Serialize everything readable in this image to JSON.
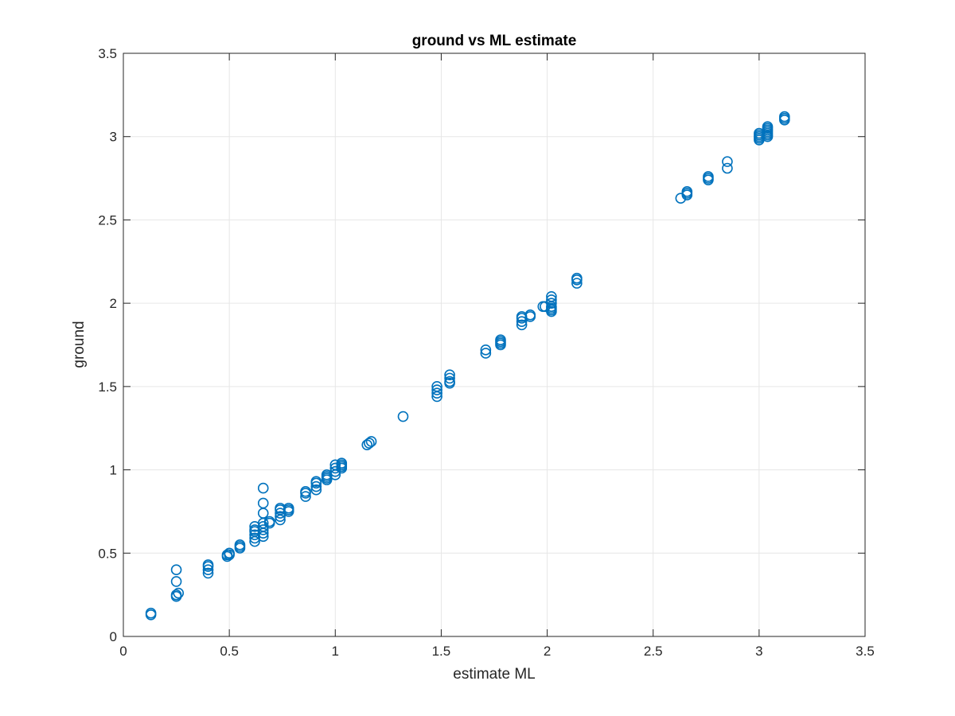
{
  "chart_data": {
    "type": "scatter",
    "title": "ground vs ML estimate",
    "xlabel": "estimate ML",
    "ylabel": "ground",
    "xlim": [
      0,
      3.5
    ],
    "ylim": [
      0,
      3.5
    ],
    "xticks": [
      "0",
      "0.5",
      "1",
      "1.5",
      "2",
      "2.5",
      "3",
      "3.5"
    ],
    "yticks": [
      "0",
      "0.5",
      "1",
      "1.5",
      "2",
      "2.5",
      "3",
      "3.5"
    ],
    "grid": true,
    "marker": "circle-open",
    "marker_color": "#0072BD",
    "points": [
      [
        0.13,
        0.13
      ],
      [
        0.13,
        0.14
      ],
      [
        0.25,
        0.24
      ],
      [
        0.25,
        0.25
      ],
      [
        0.26,
        0.26
      ],
      [
        0.25,
        0.33
      ],
      [
        0.25,
        0.4
      ],
      [
        0.4,
        0.38
      ],
      [
        0.4,
        0.4
      ],
      [
        0.4,
        0.42
      ],
      [
        0.4,
        0.43
      ],
      [
        0.49,
        0.48
      ],
      [
        0.5,
        0.49
      ],
      [
        0.5,
        0.5
      ],
      [
        0.49,
        0.49
      ],
      [
        0.55,
        0.53
      ],
      [
        0.55,
        0.54
      ],
      [
        0.55,
        0.55
      ],
      [
        0.62,
        0.57
      ],
      [
        0.62,
        0.59
      ],
      [
        0.62,
        0.61
      ],
      [
        0.62,
        0.63
      ],
      [
        0.62,
        0.64
      ],
      [
        0.62,
        0.66
      ],
      [
        0.66,
        0.6
      ],
      [
        0.66,
        0.62
      ],
      [
        0.66,
        0.64
      ],
      [
        0.66,
        0.66
      ],
      [
        0.66,
        0.68
      ],
      [
        0.66,
        0.74
      ],
      [
        0.66,
        0.8
      ],
      [
        0.66,
        0.89
      ],
      [
        0.69,
        0.68
      ],
      [
        0.69,
        0.69
      ],
      [
        0.74,
        0.7
      ],
      [
        0.74,
        0.72
      ],
      [
        0.74,
        0.74
      ],
      [
        0.74,
        0.76
      ],
      [
        0.74,
        0.77
      ],
      [
        0.78,
        0.75
      ],
      [
        0.78,
        0.76
      ],
      [
        0.78,
        0.77
      ],
      [
        0.86,
        0.84
      ],
      [
        0.86,
        0.86
      ],
      [
        0.86,
        0.87
      ],
      [
        0.91,
        0.88
      ],
      [
        0.91,
        0.9
      ],
      [
        0.91,
        0.92
      ],
      [
        0.91,
        0.93
      ],
      [
        0.96,
        0.94
      ],
      [
        0.96,
        0.95
      ],
      [
        0.96,
        0.96
      ],
      [
        0.96,
        0.97
      ],
      [
        1.0,
        0.97
      ],
      [
        1.0,
        0.99
      ],
      [
        1.0,
        1.01
      ],
      [
        1.0,
        1.03
      ],
      [
        1.03,
        1.01
      ],
      [
        1.03,
        1.02
      ],
      [
        1.03,
        1.03
      ],
      [
        1.03,
        1.04
      ],
      [
        1.15,
        1.15
      ],
      [
        1.16,
        1.16
      ],
      [
        1.17,
        1.17
      ],
      [
        1.32,
        1.32
      ],
      [
        1.48,
        1.44
      ],
      [
        1.48,
        1.46
      ],
      [
        1.48,
        1.48
      ],
      [
        1.48,
        1.5
      ],
      [
        1.54,
        1.52
      ],
      [
        1.54,
        1.53
      ],
      [
        1.54,
        1.55
      ],
      [
        1.54,
        1.57
      ],
      [
        1.71,
        1.7
      ],
      [
        1.71,
        1.72
      ],
      [
        1.78,
        1.75
      ],
      [
        1.78,
        1.76
      ],
      [
        1.78,
        1.77
      ],
      [
        1.78,
        1.78
      ],
      [
        1.88,
        1.87
      ],
      [
        1.88,
        1.89
      ],
      [
        1.88,
        1.91
      ],
      [
        1.88,
        1.92
      ],
      [
        1.92,
        1.92
      ],
      [
        1.92,
        1.93
      ],
      [
        1.98,
        1.98
      ],
      [
        1.99,
        1.98
      ],
      [
        2.02,
        1.95
      ],
      [
        2.02,
        1.96
      ],
      [
        2.02,
        1.97
      ],
      [
        2.02,
        1.98
      ],
      [
        2.02,
        2.0
      ],
      [
        2.02,
        2.02
      ],
      [
        2.02,
        2.04
      ],
      [
        2.14,
        2.12
      ],
      [
        2.14,
        2.14
      ],
      [
        2.14,
        2.15
      ],
      [
        2.63,
        2.63
      ],
      [
        2.66,
        2.65
      ],
      [
        2.66,
        2.66
      ],
      [
        2.66,
        2.67
      ],
      [
        2.76,
        2.74
      ],
      [
        2.76,
        2.75
      ],
      [
        2.76,
        2.76
      ],
      [
        2.85,
        2.81
      ],
      [
        2.85,
        2.85
      ],
      [
        3.0,
        2.98
      ],
      [
        3.0,
        2.99
      ],
      [
        3.0,
        3.0
      ],
      [
        3.0,
        3.01
      ],
      [
        3.0,
        3.02
      ],
      [
        3.04,
        3.0
      ],
      [
        3.04,
        3.01
      ],
      [
        3.04,
        3.02
      ],
      [
        3.04,
        3.03
      ],
      [
        3.04,
        3.04
      ],
      [
        3.04,
        3.05
      ],
      [
        3.04,
        3.06
      ],
      [
        3.12,
        3.1
      ],
      [
        3.12,
        3.11
      ],
      [
        3.12,
        3.12
      ]
    ]
  }
}
